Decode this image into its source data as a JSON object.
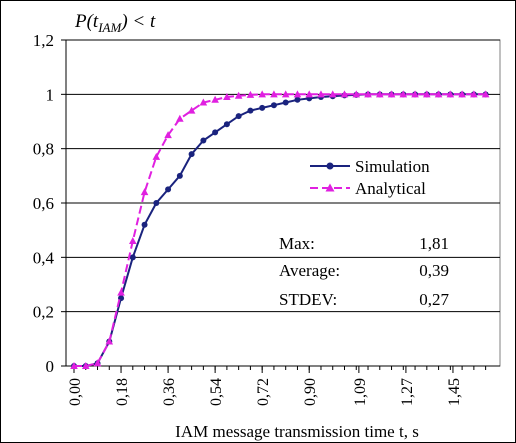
{
  "chart_data": {
    "type": "line",
    "ylabel_parts": {
      "p": "P(t",
      "sub": "IAM",
      "rest": ") < t"
    },
    "xlabel": "IAM message transmission time t, s",
    "ylim": [
      0,
      1.2
    ],
    "y_ticks": [
      "0",
      "0,2",
      "0,4",
      "0,6",
      "0,8",
      "1",
      "1,2"
    ],
    "y_tick_values": [
      0,
      0.2,
      0.4,
      0.6,
      0.8,
      1.0,
      1.2
    ],
    "x_tick_labels": [
      "0,00",
      "0,18",
      "0,36",
      "0,54",
      "0,72",
      "0,90",
      "1,09",
      "1,27",
      "1,45"
    ],
    "x_tick_values": [
      0.0,
      0.18,
      0.36,
      0.54,
      0.72,
      0.9,
      1.09,
      1.27,
      1.45
    ],
    "xlim": [
      0.0,
      1.63
    ],
    "grid": "horizontal",
    "legend_placement": "middle-right",
    "x": [
      0.0,
      0.045,
      0.09,
      0.135,
      0.18,
      0.225,
      0.27,
      0.315,
      0.36,
      0.405,
      0.45,
      0.495,
      0.54,
      0.585,
      0.63,
      0.675,
      0.72,
      0.765,
      0.81,
      0.855,
      0.9,
      0.945,
      0.99,
      1.035,
      1.08,
      1.125,
      1.17,
      1.215,
      1.26,
      1.305,
      1.35,
      1.395,
      1.44,
      1.485,
      1.53,
      1.575
    ],
    "series": [
      {
        "name": "Simulation",
        "color": "#1a237e",
        "marker": "circle",
        "dash": "solid",
        "values": [
          0.0,
          0.0,
          0.01,
          0.09,
          0.25,
          0.4,
          0.52,
          0.6,
          0.65,
          0.7,
          0.78,
          0.83,
          0.86,
          0.89,
          0.92,
          0.94,
          0.95,
          0.96,
          0.97,
          0.98,
          0.985,
          0.99,
          0.993,
          0.996,
          0.998,
          1.0,
          1.0,
          1.0,
          1.0,
          1.0,
          1.0,
          1.0,
          1.0,
          1.0,
          1.0,
          1.0
        ]
      },
      {
        "name": "Analytical",
        "color": "#e020e0",
        "marker": "triangle",
        "dash": "dashed",
        "values": [
          0.0,
          0.0,
          0.01,
          0.09,
          0.27,
          0.46,
          0.64,
          0.77,
          0.85,
          0.91,
          0.94,
          0.97,
          0.98,
          0.99,
          0.995,
          0.998,
          1.0,
          1.0,
          1.0,
          1.0,
          1.0,
          1.0,
          1.0,
          1.0,
          1.0,
          1.0,
          1.0,
          1.0,
          1.0,
          1.0,
          1.0,
          1.0,
          1.0,
          1.0,
          1.0,
          1.0
        ]
      }
    ],
    "stats": [
      {
        "label": "Max:",
        "value": "1,81"
      },
      {
        "label": "Average:",
        "value": "0,39"
      },
      {
        "label": "STDEV:",
        "value": "0,27"
      }
    ]
  }
}
